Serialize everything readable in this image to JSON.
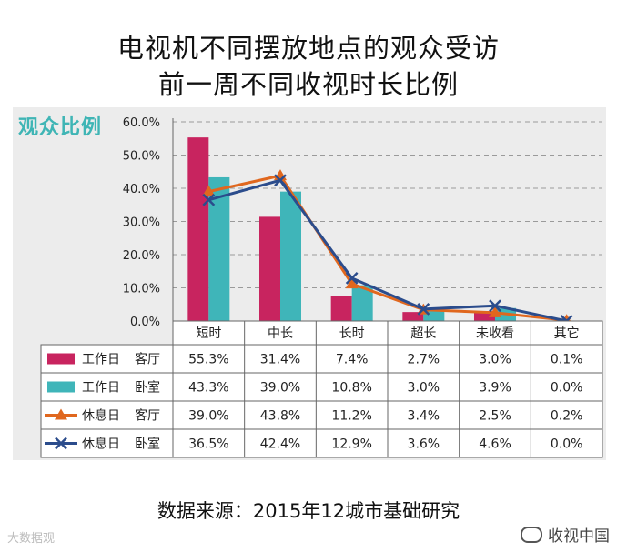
{
  "title_lines": [
    "电视机不同摆放地点的观众受访",
    "前一周不同收视时长比例"
  ],
  "chart_data": {
    "type": "bar",
    "ylabel": "观众比例",
    "categories": [
      "短时",
      "中长",
      "长时",
      "超长",
      "未收看",
      "其它"
    ],
    "ylim": [
      0,
      60
    ],
    "yticks": [
      "0.0%",
      "10.0%",
      "20.0%",
      "30.0%",
      "40.0%",
      "50.0%",
      "60.0%"
    ],
    "grid": true,
    "bar_series": [
      {
        "name": "工作日",
        "name2": "客厅",
        "color": "#c8245f",
        "values": [
          55.3,
          31.4,
          7.4,
          2.7,
          3.0,
          0.1
        ],
        "labels": [
          "55.3%",
          "31.4%",
          "7.4%",
          "2.7%",
          "3.0%",
          "0.1%"
        ]
      },
      {
        "name": "工作日",
        "name2": "卧室",
        "color": "#3fb5b9",
        "values": [
          43.3,
          39.0,
          10.8,
          3.0,
          3.9,
          0.0
        ],
        "labels": [
          "43.3%",
          "39.0%",
          "10.8%",
          "3.0%",
          "3.9%",
          "0.0%"
        ]
      }
    ],
    "line_series": [
      {
        "name": "休息日",
        "name2": "客厅",
        "color": "#e0671e",
        "marker": "triangle",
        "values": [
          39.0,
          43.8,
          11.2,
          3.4,
          2.5,
          0.2
        ],
        "labels": [
          "39.0%",
          "43.8%",
          "11.2%",
          "3.4%",
          "2.5%",
          "0.2%"
        ]
      },
      {
        "name": "休息日",
        "name2": "卧室",
        "color": "#2b4c8c",
        "marker": "x",
        "values": [
          36.5,
          42.4,
          12.9,
          3.6,
          4.6,
          0.0
        ],
        "labels": [
          "36.5%",
          "42.4%",
          "12.9%",
          "3.6%",
          "4.6%",
          "0.0%"
        ]
      }
    ]
  },
  "source": "数据来源：2015年12城市基础研究",
  "watermark_left": "大数据观",
  "watermark_right": "收视中国"
}
